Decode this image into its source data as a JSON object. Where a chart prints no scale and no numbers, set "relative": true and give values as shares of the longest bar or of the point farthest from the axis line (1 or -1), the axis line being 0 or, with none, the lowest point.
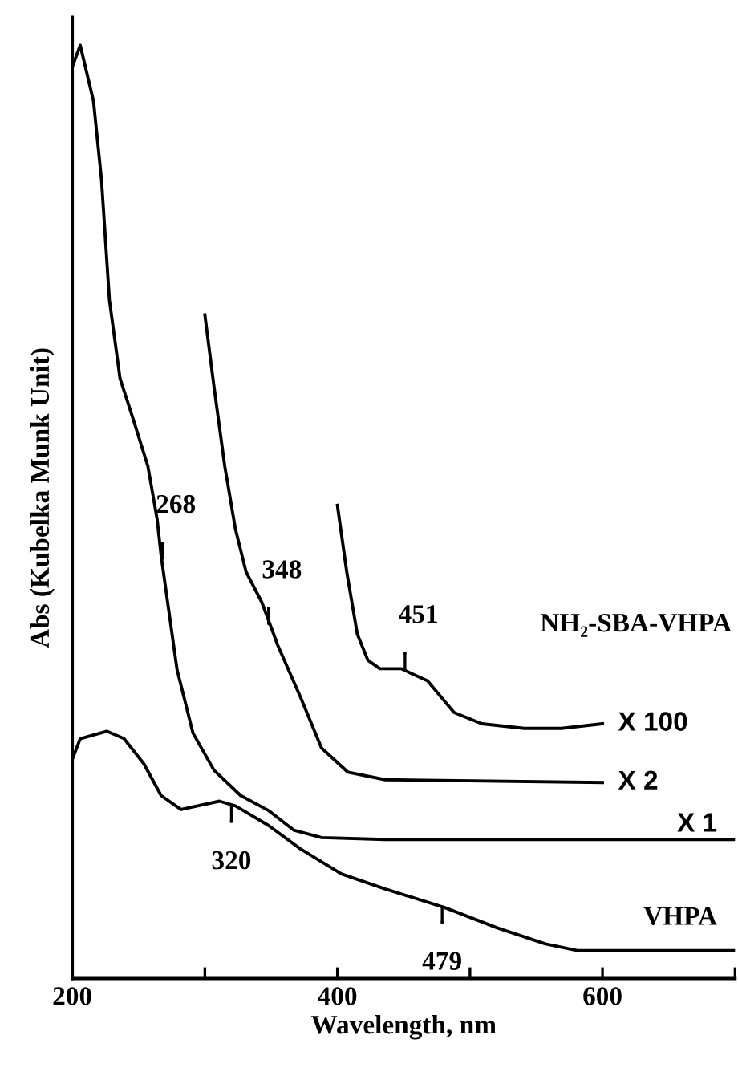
{
  "chart_data": {
    "type": "line",
    "relative": true,
    "xlabel": "Wavelength, nm",
    "ylabel": "Abs (Kubelka Munk Unit)",
    "xlim": [
      200,
      700
    ],
    "xticks": [
      200,
      {
        "value": 300,
        "label": null
      },
      400,
      {
        "value": 500,
        "label": null
      },
      600,
      {
        "value": 700,
        "label": null
      }
    ],
    "grid": false,
    "legend": false,
    "marker": "none",
    "line_style": "solid",
    "series": [
      {
        "name": "X 1",
        "color": "#000000",
        "x": [
          200,
          206,
          216,
          222,
          228,
          236,
          246,
          257,
          264,
          267,
          279,
          291,
          307,
          327,
          348,
          367,
          388,
          436,
          509,
          700
        ],
        "values": [
          0.977,
          1.0,
          0.94,
          0.856,
          0.727,
          0.643,
          0.599,
          0.549,
          0.492,
          0.453,
          0.331,
          0.263,
          0.223,
          0.196,
          0.18,
          0.159,
          0.151,
          0.149,
          0.149,
          0.149
        ]
      },
      {
        "name": "X 2",
        "color": "#000000",
        "x": [
          300,
          307,
          315,
          323,
          331,
          343,
          355,
          372,
          388,
          408,
          436,
          600
        ],
        "values": [
          0.711,
          0.633,
          0.549,
          0.482,
          0.436,
          0.403,
          0.357,
          0.302,
          0.247,
          0.221,
          0.213,
          0.21
        ]
      },
      {
        "name": "X 100",
        "color": "#000000",
        "x": [
          400,
          407,
          415,
          423,
          432,
          448,
          468,
          488,
          509,
          541,
          569,
          600
        ],
        "values": [
          0.507,
          0.436,
          0.369,
          0.341,
          0.332,
          0.332,
          0.319,
          0.285,
          0.273,
          0.268,
          0.268,
          0.273
        ]
      },
      {
        "name": "VHPA",
        "color": "#000000",
        "x": [
          200,
          206,
          226,
          239,
          254,
          267,
          282,
          311,
          323,
          348,
          372,
          403,
          436,
          481,
          521,
          557,
          581,
          700
        ],
        "values": [
          0.235,
          0.257,
          0.265,
          0.257,
          0.23,
          0.196,
          0.181,
          0.19,
          0.185,
          0.164,
          0.139,
          0.112,
          0.096,
          0.076,
          0.054,
          0.037,
          0.03,
          0.03
        ]
      }
    ],
    "annotations": [
      {
        "text": "268",
        "x": 268,
        "y": 0.45
      },
      {
        "text": "348",
        "x": 348,
        "y": 0.38
      },
      {
        "text": "451",
        "x": 451,
        "y": 0.332
      },
      {
        "text": "320",
        "x": 320,
        "y": 0.185
      },
      {
        "text": "479",
        "x": 479,
        "y": 0.077
      },
      "NH₂-SBA-VHPA"
    ]
  }
}
